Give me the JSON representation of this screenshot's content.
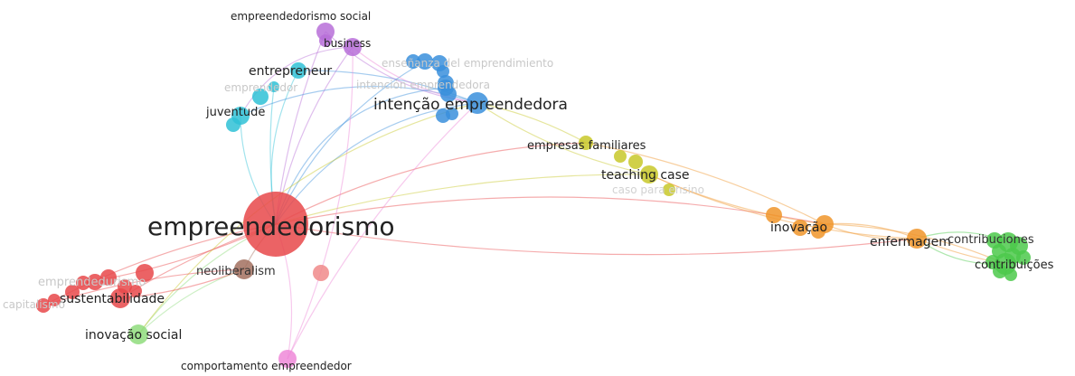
{
  "colors": {
    "red": "#e8484a",
    "purple": "#b76fd8",
    "blue": "#3a8fdc",
    "cyan": "#2fc1d6",
    "yellow": "#c8c829",
    "orange": "#f0952a",
    "green": "#4cc94b",
    "lightgreen": "#8fdc7c",
    "pink": "#ee88d8",
    "brown": "#a2705f",
    "salmon": "#f08a8a"
  },
  "nodes": [
    {
      "id": "empreendedorismo",
      "label": "empreendedorismo",
      "cluster": "red",
      "weight": 10
    },
    {
      "id": "neoliberalism",
      "label": "neoliberalism",
      "cluster": "brown",
      "weight": 3
    },
    {
      "id": "sustentabilidade",
      "label": "sustentabilidade",
      "cluster": "red",
      "weight": 3
    },
    {
      "id": "empreendedurismo",
      "label": "emprendedurismo",
      "cluster": "red",
      "weight": 2
    },
    {
      "id": "capitalismo",
      "label": "capitalismo",
      "cluster": "red",
      "weight": 2
    },
    {
      "id": "inovacao-social",
      "label": "inovação social",
      "cluster": "lightgreen",
      "weight": 3
    },
    {
      "id": "comportamento-empreendedor",
      "label": "comportamento empreendedor",
      "cluster": "pink",
      "weight": 2
    },
    {
      "id": "empreendedorismo-social",
      "label": "empreendedorismo social",
      "cluster": "purple",
      "weight": 2
    },
    {
      "id": "business",
      "label": "business",
      "cluster": "purple",
      "weight": 2
    },
    {
      "id": "entrepreneur",
      "label": "entrepreneur",
      "cluster": "cyan",
      "weight": 2
    },
    {
      "id": "emprendedor",
      "label": "emprendedor",
      "cluster": "cyan",
      "weight": 1
    },
    {
      "id": "juventude",
      "label": "juventude",
      "cluster": "cyan",
      "weight": 2
    },
    {
      "id": "ensenanza",
      "label": "enseñanza del emprendimiento",
      "cluster": "blue",
      "weight": 2
    },
    {
      "id": "intencion",
      "label": "intención emprendedora",
      "cluster": "blue",
      "weight": 2
    },
    {
      "id": "intencao",
      "label": "intenção empreendedora",
      "cluster": "blue",
      "weight": 4
    },
    {
      "id": "empresas-familiares",
      "label": "empresas familiares",
      "cluster": "yellow",
      "weight": 2
    },
    {
      "id": "teaching-case",
      "label": "teaching case",
      "cluster": "yellow",
      "weight": 2
    },
    {
      "id": "caso-para-ensino",
      "label": "caso para ensino",
      "cluster": "yellow",
      "weight": 1
    },
    {
      "id": "inovacao",
      "label": "inovação",
      "cluster": "orange",
      "weight": 3
    },
    {
      "id": "enfermagem",
      "label": "enfermagem",
      "cluster": "orange",
      "weight": 3
    },
    {
      "id": "contribuciones",
      "label": "contribuciones",
      "cluster": "green",
      "weight": 2
    },
    {
      "id": "contribuicoes",
      "label": "contribuições",
      "cluster": "green",
      "weight": 3
    }
  ]
}
